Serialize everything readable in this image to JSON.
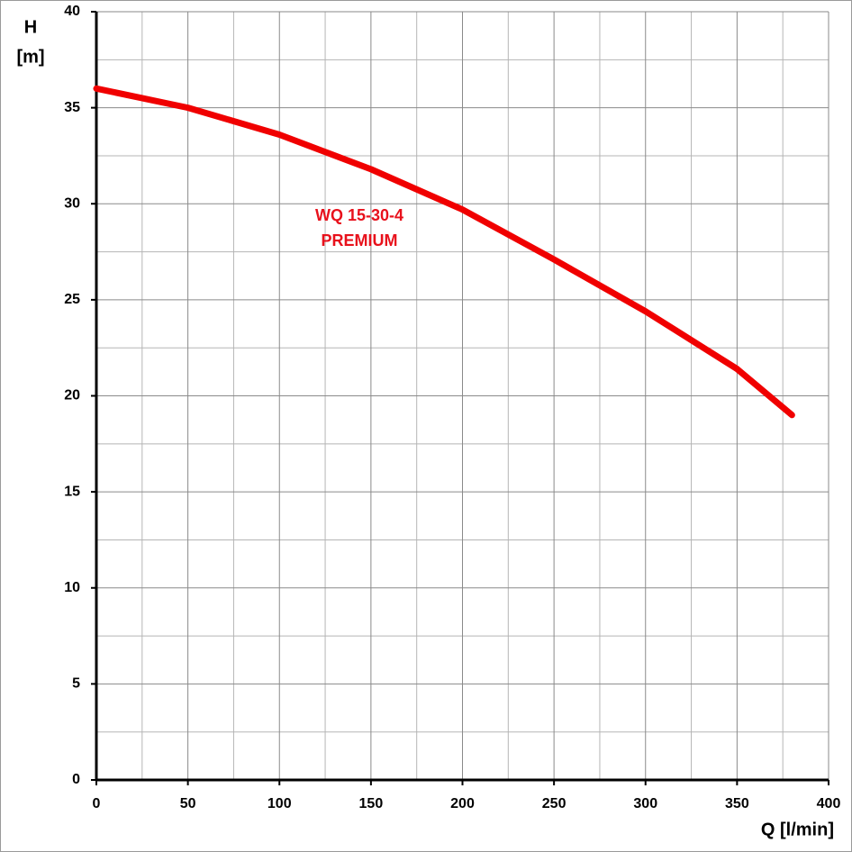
{
  "chart_data": {
    "type": "line",
    "y_label": "H",
    "y_unit": "[m]",
    "x_label": "Q [l/min]",
    "annotations": [
      "WQ 15-30-4",
      "PREMIUM"
    ],
    "x": [
      0,
      50,
      100,
      150,
      200,
      250,
      300,
      350,
      380
    ],
    "series": [
      {
        "name": "WQ 15-30-4 PREMIUM",
        "color": "#f00000",
        "values": [
          36,
          35,
          33.6,
          31.8,
          29.7,
          27.1,
          24.4,
          21.4,
          19
        ]
      }
    ],
    "xlim": [
      0,
      400
    ],
    "xticks": [
      0,
      50,
      100,
      150,
      200,
      250,
      300,
      350,
      400
    ],
    "ylim": [
      0,
      40
    ],
    "yticks": [
      0,
      5,
      10,
      15,
      20,
      25,
      30,
      35,
      40
    ],
    "grid": true
  }
}
